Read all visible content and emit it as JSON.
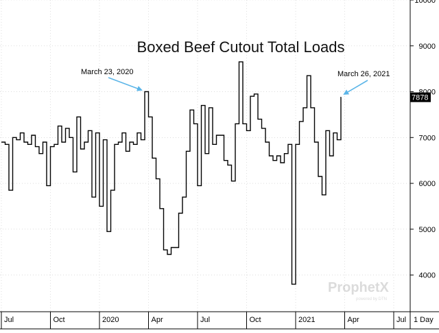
{
  "chart_data": {
    "type": "line",
    "title": "Boxed Beef Cutout Total Loads",
    "xlabel": "",
    "ylabel": "",
    "ylim": [
      3200,
      10000
    ],
    "y_ticks": [
      4000,
      5000,
      6000,
      7000,
      8000,
      9000,
      10000
    ],
    "y_tick_labels": [
      "4000",
      "5000",
      "6000",
      "7000",
      "8000",
      "9000",
      "10000"
    ],
    "x_tick_labels": [
      "Jul",
      "Oct",
      "2020",
      "Apr",
      "Jul",
      "Oct",
      "2021",
      "Apr",
      "Jul"
    ],
    "x_tick_index": [
      0,
      13,
      26,
      39,
      52,
      65,
      78,
      91,
      104
    ],
    "periodicity_label": "1 Day",
    "last_value_label": "7878",
    "last_value": 7878,
    "grid": true,
    "annotations": [
      {
        "text": "March 23, 2020",
        "point_index": 38,
        "value": 8000
      },
      {
        "text": "March 26, 2021",
        "point_index": 90,
        "value": 7878
      }
    ],
    "watermark": {
      "brand": "ProphetX",
      "tagline": "powered by DTN"
    },
    "series": [
      {
        "name": "Boxed Beef Cutout Total Loads",
        "color": "#000000",
        "values": [
          6900,
          6850,
          5850,
          7000,
          6950,
          7100,
          6900,
          6850,
          7050,
          6800,
          6650,
          6900,
          5950,
          6800,
          6850,
          7250,
          6900,
          7200,
          7000,
          6250,
          7450,
          6750,
          6900,
          7150,
          5700,
          7100,
          5500,
          6950,
          4950,
          5850,
          6850,
          6900,
          7100,
          6700,
          6900,
          6850,
          7100,
          6950,
          8000,
          7450,
          6550,
          6100,
          5450,
          4550,
          4450,
          4600,
          4600,
          5350,
          5700,
          6700,
          7600,
          7300,
          5950,
          7700,
          6650,
          7650,
          6850,
          7050,
          7050,
          6500,
          6400,
          6050,
          7300,
          8650,
          7300,
          7150,
          7900,
          7950,
          7400,
          7200,
          6900,
          6600,
          6500,
          6600,
          6450,
          6650,
          6850,
          3800,
          6850,
          7350,
          7650,
          8350,
          7650,
          6900,
          6150,
          5750,
          7150,
          6600,
          7100,
          6950,
          7878
        ]
      }
    ]
  }
}
